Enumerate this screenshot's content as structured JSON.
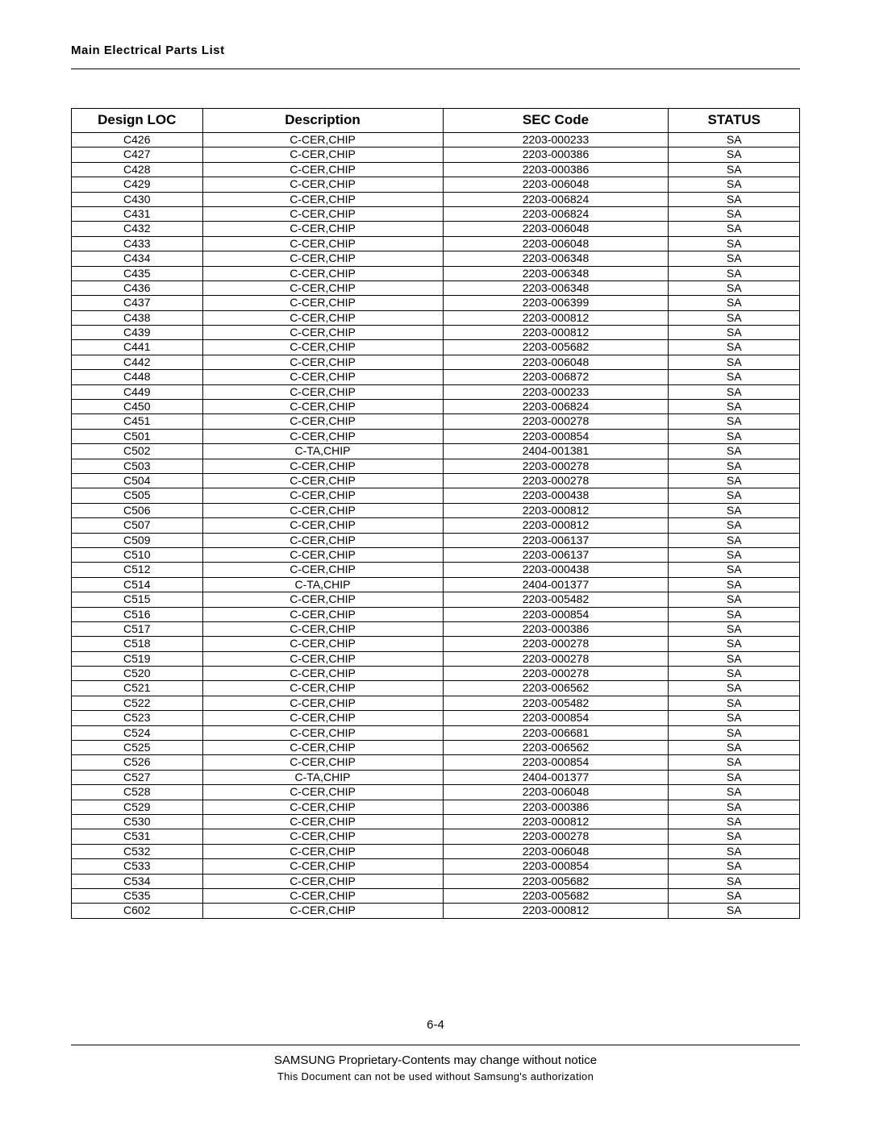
{
  "header": {
    "title": "Main Electrical Parts List"
  },
  "table": {
    "columns": [
      "Design LOC",
      "Description",
      "SEC Code",
      "STATUS"
    ],
    "column_widths_pct": [
      18,
      33,
      31,
      18
    ],
    "header_fontsize": 17,
    "cell_fontsize": 14,
    "border_color": "#000000",
    "background_color": "#ffffff",
    "rows": [
      [
        "C426",
        "C-CER,CHIP",
        "2203-000233",
        "SA"
      ],
      [
        "C427",
        "C-CER,CHIP",
        "2203-000386",
        "SA"
      ],
      [
        "C428",
        "C-CER,CHIP",
        "2203-000386",
        "SA"
      ],
      [
        "C429",
        "C-CER,CHIP",
        "2203-006048",
        "SA"
      ],
      [
        "C430",
        "C-CER,CHIP",
        "2203-006824",
        "SA"
      ],
      [
        "C431",
        "C-CER,CHIP",
        "2203-006824",
        "SA"
      ],
      [
        "C432",
        "C-CER,CHIP",
        "2203-006048",
        "SA"
      ],
      [
        "C433",
        "C-CER,CHIP",
        "2203-006048",
        "SA"
      ],
      [
        "C434",
        "C-CER,CHIP",
        "2203-006348",
        "SA"
      ],
      [
        "C435",
        "C-CER,CHIP",
        "2203-006348",
        "SA"
      ],
      [
        "C436",
        "C-CER,CHIP",
        "2203-006348",
        "SA"
      ],
      [
        "C437",
        "C-CER,CHIP",
        "2203-006399",
        "SA"
      ],
      [
        "C438",
        "C-CER,CHIP",
        "2203-000812",
        "SA"
      ],
      [
        "C439",
        "C-CER,CHIP",
        "2203-000812",
        "SA"
      ],
      [
        "C441",
        "C-CER,CHIP",
        "2203-005682",
        "SA"
      ],
      [
        "C442",
        "C-CER,CHIP",
        "2203-006048",
        "SA"
      ],
      [
        "C448",
        "C-CER,CHIP",
        "2203-006872",
        "SA"
      ],
      [
        "C449",
        "C-CER,CHIP",
        "2203-000233",
        "SA"
      ],
      [
        "C450",
        "C-CER,CHIP",
        "2203-006824",
        "SA"
      ],
      [
        "C451",
        "C-CER,CHIP",
        "2203-000278",
        "SA"
      ],
      [
        "C501",
        "C-CER,CHIP",
        "2203-000854",
        "SA"
      ],
      [
        "C502",
        "C-TA,CHIP",
        "2404-001381",
        "SA"
      ],
      [
        "C503",
        "C-CER,CHIP",
        "2203-000278",
        "SA"
      ],
      [
        "C504",
        "C-CER,CHIP",
        "2203-000278",
        "SA"
      ],
      [
        "C505",
        "C-CER,CHIP",
        "2203-000438",
        "SA"
      ],
      [
        "C506",
        "C-CER,CHIP",
        "2203-000812",
        "SA"
      ],
      [
        "C507",
        "C-CER,CHIP",
        "2203-000812",
        "SA"
      ],
      [
        "C509",
        "C-CER,CHIP",
        "2203-006137",
        "SA"
      ],
      [
        "C510",
        "C-CER,CHIP",
        "2203-006137",
        "SA"
      ],
      [
        "C512",
        "C-CER,CHIP",
        "2203-000438",
        "SA"
      ],
      [
        "C514",
        "C-TA,CHIP",
        "2404-001377",
        "SA"
      ],
      [
        "C515",
        "C-CER,CHIP",
        "2203-005482",
        "SA"
      ],
      [
        "C516",
        "C-CER,CHIP",
        "2203-000854",
        "SA"
      ],
      [
        "C517",
        "C-CER,CHIP",
        "2203-000386",
        "SA"
      ],
      [
        "C518",
        "C-CER,CHIP",
        "2203-000278",
        "SA"
      ],
      [
        "C519",
        "C-CER,CHIP",
        "2203-000278",
        "SA"
      ],
      [
        "C520",
        "C-CER,CHIP",
        "2203-000278",
        "SA"
      ],
      [
        "C521",
        "C-CER,CHIP",
        "2203-006562",
        "SA"
      ],
      [
        "C522",
        "C-CER,CHIP",
        "2203-005482",
        "SA"
      ],
      [
        "C523",
        "C-CER,CHIP",
        "2203-000854",
        "SA"
      ],
      [
        "C524",
        "C-CER,CHIP",
        "2203-006681",
        "SA"
      ],
      [
        "C525",
        "C-CER,CHIP",
        "2203-006562",
        "SA"
      ],
      [
        "C526",
        "C-CER,CHIP",
        "2203-000854",
        "SA"
      ],
      [
        "C527",
        "C-TA,CHIP",
        "2404-001377",
        "SA"
      ],
      [
        "C528",
        "C-CER,CHIP",
        "2203-006048",
        "SA"
      ],
      [
        "C529",
        "C-CER,CHIP",
        "2203-000386",
        "SA"
      ],
      [
        "C530",
        "C-CER,CHIP",
        "2203-000812",
        "SA"
      ],
      [
        "C531",
        "C-CER,CHIP",
        "2203-000278",
        "SA"
      ],
      [
        "C532",
        "C-CER,CHIP",
        "2203-006048",
        "SA"
      ],
      [
        "C533",
        "C-CER,CHIP",
        "2203-000854",
        "SA"
      ],
      [
        "C534",
        "C-CER,CHIP",
        "2203-005682",
        "SA"
      ],
      [
        "C535",
        "C-CER,CHIP",
        "2203-005682",
        "SA"
      ],
      [
        "C602",
        "C-CER,CHIP",
        "2203-000812",
        "SA"
      ]
    ]
  },
  "footer": {
    "page_number": "6-4",
    "line1": "SAMSUNG Proprietary-Contents may change without notice",
    "line2": "This Document can not be used without Samsung's authorization"
  }
}
